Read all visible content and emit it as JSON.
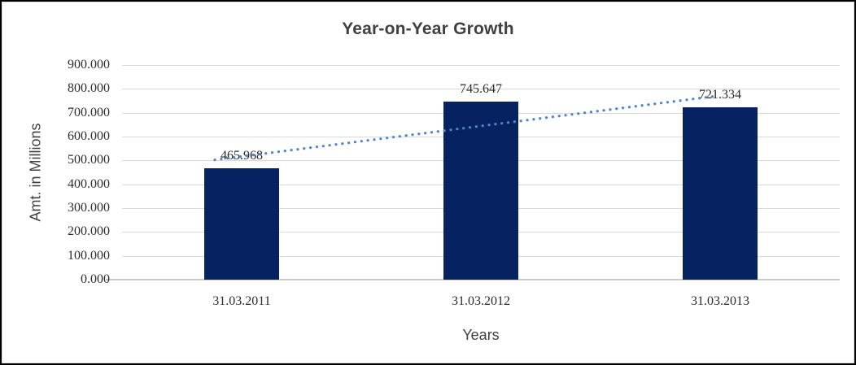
{
  "chart_data": {
    "type": "bar",
    "title": "Year-on-Year Growth",
    "xlabel": "Years",
    "ylabel": "Amt. in Millions",
    "categories": [
      "31.03.2011",
      "31.03.2012",
      "31.03.2013"
    ],
    "values": [
      465968,
      745647,
      721334
    ],
    "value_labels": [
      "465.968",
      "745.647",
      "721.334"
    ],
    "ylim": [
      0,
      900000
    ],
    "y_tick_step": 100000,
    "y_tick_labels": [
      "0.000",
      "100.000",
      "200.000",
      "300.000",
      "400.000",
      "500.000",
      "600.000",
      "700.000",
      "800.000",
      "900.000"
    ],
    "grid": true,
    "legend": "none",
    "trendline": {
      "type": "linear",
      "style": "dotted"
    },
    "colors": {
      "bar": "#072261",
      "trendline": "#4f86c8",
      "gridline": "#d9d9d9",
      "axis_line": "#c9c9c9",
      "title_text": "#404040",
      "tick_text": "#2b2b2b",
      "axis_title_text": "#3f3f3f",
      "background": "#ffffff",
      "frame_border": "#000000"
    }
  }
}
